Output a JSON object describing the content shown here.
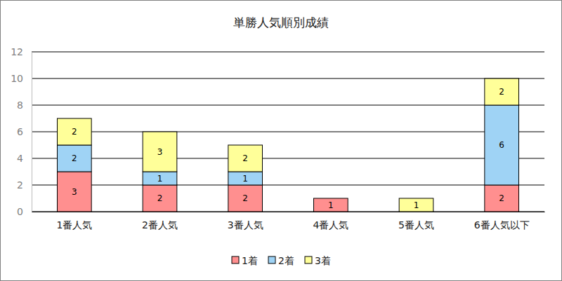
{
  "chart_data": {
    "type": "bar",
    "title": "単勝人気順別成績",
    "categories": [
      "1番人気",
      "2番人気",
      "3番人気",
      "4番人気",
      "5番人気",
      "6番人気以下"
    ],
    "series": [
      {
        "name": "1着",
        "color": "#ff8f8f",
        "values": [
          3,
          2,
          2,
          1,
          0,
          2
        ]
      },
      {
        "name": "2着",
        "color": "#9fd3f5",
        "values": [
          2,
          1,
          1,
          0,
          0,
          6
        ]
      },
      {
        "name": "3着",
        "color": "#ffff99",
        "values": [
          2,
          3,
          2,
          0,
          1,
          2
        ]
      }
    ],
    "ylim": [
      0,
      12
    ],
    "yticks": [
      0,
      2,
      4,
      6,
      8,
      10,
      12
    ],
    "stacked": true,
    "grid": true,
    "data_labels": true,
    "legend": "bottom"
  }
}
